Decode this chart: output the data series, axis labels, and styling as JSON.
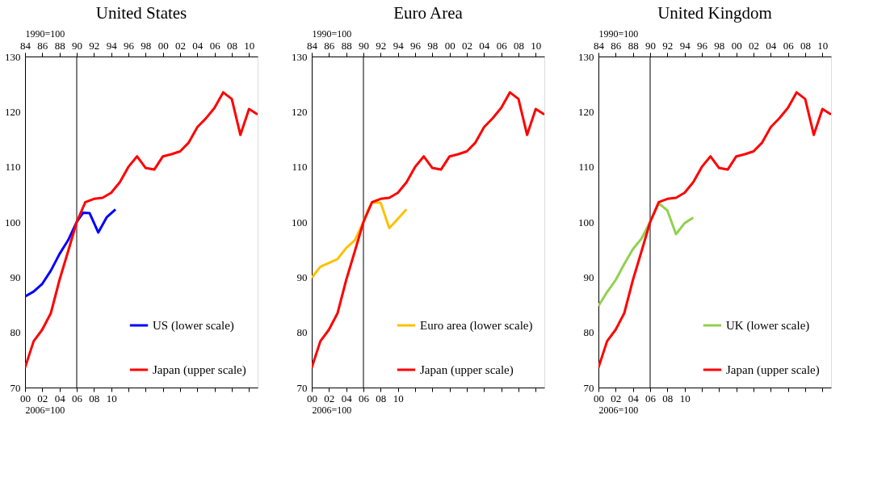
{
  "chart_data": [
    {
      "type": "line",
      "title": "United States",
      "xlabel": "2006=100",
      "x2label": "1990=100",
      "xlim": [
        2000,
        2027
      ],
      "xticks": [
        {
          "value": 2000,
          "label": "00"
        },
        {
          "value": 2002,
          "label": "02"
        },
        {
          "value": 2004,
          "label": "04"
        },
        {
          "value": 2006,
          "label": "06"
        },
        {
          "value": 2008,
          "label": "08"
        },
        {
          "value": 2010,
          "label": "10"
        },
        {
          "value": 2012,
          "label": null
        },
        {
          "value": 2014,
          "label": null
        },
        {
          "value": 2016,
          "label": null
        },
        {
          "value": 2018,
          "label": null
        },
        {
          "value": 2020,
          "label": null
        },
        {
          "value": 2022,
          "label": null
        },
        {
          "value": 2024,
          "label": null
        },
        {
          "value": 2026,
          "label": null
        }
      ],
      "x2lim": [
        1984,
        2011
      ],
      "x2ticks": [
        {
          "value": 1984,
          "label": "84"
        },
        {
          "value": 1986,
          "label": "86"
        },
        {
          "value": 1988,
          "label": "88"
        },
        {
          "value": 1990,
          "label": "90"
        },
        {
          "value": 1992,
          "label": "92"
        },
        {
          "value": 1994,
          "label": "94"
        },
        {
          "value": 1996,
          "label": "96"
        },
        {
          "value": 1998,
          "label": "98"
        },
        {
          "value": 2000,
          "label": "00"
        },
        {
          "value": 2002,
          "label": "02"
        },
        {
          "value": 2004,
          "label": "04"
        },
        {
          "value": 2006,
          "label": "06"
        },
        {
          "value": 2008,
          "label": "08"
        },
        {
          "value": 2010,
          "label": "10"
        }
      ],
      "ylim": [
        70,
        130
      ],
      "yticks": [
        70,
        80,
        90,
        100,
        110,
        120,
        130
      ],
      "grid": false,
      "legend": "bottom right",
      "line_style": "solid",
      "marker": "none",
      "ref_lines": [
        {
          "axis": "x",
          "value": 2006,
          "color": "#000000"
        }
      ],
      "series": [
        {
          "name": "US (lower scale)",
          "color": "#0000ff",
          "x": [
            2000,
            2001,
            2002,
            2003,
            2004,
            2005,
            2006,
            2006.75,
            2007.5,
            2008.5,
            2009.5,
            2010.5
          ],
          "values": [
            86.5,
            87.4,
            88.8,
            91.2,
            94.2,
            96.7,
            100,
            101.7,
            101.6,
            98.1,
            100.9,
            102.3
          ]
        },
        {
          "name": "Japan (upper scale)",
          "color": "#ff0000",
          "axis": "x2",
          "x": [
            1984,
            1985,
            1986,
            1987,
            1988,
            1989,
            1990,
            1991,
            1992,
            1993,
            1994,
            1995,
            1996,
            1997,
            1998,
            1999,
            2000,
            2001,
            2002,
            2003,
            2004,
            2005,
            2006,
            2007,
            2008,
            2009,
            2010,
            2011
          ],
          "values": [
            73.6,
            78.4,
            80.5,
            83.5,
            89.5,
            94.7,
            100,
            103.6,
            104.2,
            104.4,
            105.3,
            107.2,
            110,
            111.9,
            109.8,
            109.5,
            111.9,
            112.3,
            112.8,
            114.4,
            117.2,
            118.8,
            120.7,
            123.5,
            122.3,
            115.8,
            120.5,
            119.5
          ]
        }
      ]
    },
    {
      "type": "line",
      "title": "Euro Area",
      "xlabel": "2006=100",
      "x2label": "1990=100",
      "xlim": [
        2000,
        2027
      ],
      "xticks": [
        {
          "value": 2000,
          "label": "00"
        },
        {
          "value": 2002,
          "label": "02"
        },
        {
          "value": 2004,
          "label": "04"
        },
        {
          "value": 2006,
          "label": "06"
        },
        {
          "value": 2008,
          "label": "08"
        },
        {
          "value": 2010,
          "label": "10"
        },
        {
          "value": 2012,
          "label": null
        },
        {
          "value": 2014,
          "label": null
        },
        {
          "value": 2016,
          "label": null
        },
        {
          "value": 2018,
          "label": null
        },
        {
          "value": 2020,
          "label": null
        },
        {
          "value": 2022,
          "label": null
        },
        {
          "value": 2024,
          "label": null
        },
        {
          "value": 2026,
          "label": null
        }
      ],
      "x2lim": [
        1984,
        2011
      ],
      "x2ticks": [
        {
          "value": 1984,
          "label": "84"
        },
        {
          "value": 1986,
          "label": "86"
        },
        {
          "value": 1988,
          "label": "88"
        },
        {
          "value": 1990,
          "label": "90"
        },
        {
          "value": 1992,
          "label": "92"
        },
        {
          "value": 1994,
          "label": "94"
        },
        {
          "value": 1996,
          "label": "96"
        },
        {
          "value": 1998,
          "label": "98"
        },
        {
          "value": 2000,
          "label": "00"
        },
        {
          "value": 2002,
          "label": "02"
        },
        {
          "value": 2004,
          "label": "04"
        },
        {
          "value": 2006,
          "label": "06"
        },
        {
          "value": 2008,
          "label": "08"
        },
        {
          "value": 2010,
          "label": "10"
        }
      ],
      "ylim": [
        70,
        130
      ],
      "yticks": [
        70,
        80,
        90,
        100,
        110,
        120,
        130
      ],
      "grid": false,
      "legend": "bottom right",
      "line_style": "solid",
      "marker": "none",
      "ref_lines": [
        {
          "axis": "x",
          "value": 2006,
          "color": "#000000"
        }
      ],
      "series": [
        {
          "name": "Euro area (lower scale)",
          "color": "#ffc000",
          "x": [
            2000,
            2001,
            2002,
            2003,
            2004,
            2005,
            2006,
            2006.5,
            2007,
            2008,
            2009,
            2010,
            2011
          ],
          "values": [
            89.9,
            91.9,
            92.6,
            93.3,
            95.3,
            96.7,
            100,
            102.1,
            103.5,
            103.5,
            98.9,
            100.6,
            102.3
          ]
        },
        {
          "name": "Japan (upper scale)",
          "color": "#ff0000",
          "axis": "x2",
          "x": [
            1984,
            1985,
            1986,
            1987,
            1988,
            1989,
            1990,
            1991,
            1992,
            1993,
            1994,
            1995,
            1996,
            1997,
            1998,
            1999,
            2000,
            2001,
            2002,
            2003,
            2004,
            2005,
            2006,
            2007,
            2008,
            2009,
            2010,
            2011
          ],
          "values": [
            73.6,
            78.4,
            80.5,
            83.5,
            89.5,
            94.7,
            100,
            103.6,
            104.2,
            104.4,
            105.3,
            107.2,
            110,
            111.9,
            109.8,
            109.5,
            111.9,
            112.3,
            112.8,
            114.4,
            117.2,
            118.8,
            120.7,
            123.5,
            122.3,
            115.8,
            120.5,
            119.5
          ]
        }
      ]
    },
    {
      "type": "line",
      "title": "United Kingdom",
      "xlabel": "2006=100",
      "x2label": "1990=100",
      "xlim": [
        2000,
        2027
      ],
      "xticks": [
        {
          "value": 2000,
          "label": "00"
        },
        {
          "value": 2002,
          "label": "02"
        },
        {
          "value": 2004,
          "label": "04"
        },
        {
          "value": 2006,
          "label": "06"
        },
        {
          "value": 2008,
          "label": "08"
        },
        {
          "value": 2010,
          "label": "10"
        },
        {
          "value": 2012,
          "label": null
        },
        {
          "value": 2014,
          "label": null
        },
        {
          "value": 2016,
          "label": null
        },
        {
          "value": 2018,
          "label": null
        },
        {
          "value": 2020,
          "label": null
        },
        {
          "value": 2022,
          "label": null
        },
        {
          "value": 2024,
          "label": null
        },
        {
          "value": 2026,
          "label": null
        }
      ],
      "x2lim": [
        1984,
        2011
      ],
      "x2ticks": [
        {
          "value": 1984,
          "label": "84"
        },
        {
          "value": 1986,
          "label": "86"
        },
        {
          "value": 1988,
          "label": "88"
        },
        {
          "value": 1990,
          "label": "90"
        },
        {
          "value": 1992,
          "label": "92"
        },
        {
          "value": 1994,
          "label": "94"
        },
        {
          "value": 1996,
          "label": "96"
        },
        {
          "value": 1998,
          "label": "98"
        },
        {
          "value": 2000,
          "label": "00"
        },
        {
          "value": 2002,
          "label": "02"
        },
        {
          "value": 2004,
          "label": "04"
        },
        {
          "value": 2006,
          "label": "06"
        },
        {
          "value": 2008,
          "label": "08"
        },
        {
          "value": 2010,
          "label": "10"
        }
      ],
      "ylim": [
        70,
        130
      ],
      "yticks": [
        70,
        80,
        90,
        100,
        110,
        120,
        130
      ],
      "grid": false,
      "legend": "bottom right",
      "line_style": "solid",
      "marker": "none",
      "ref_lines": [
        {
          "axis": "x",
          "value": 2006,
          "color": "#000000"
        }
      ],
      "series": [
        {
          "name": "UK (lower scale)",
          "color": "#92d050",
          "x": [
            2000,
            2001,
            2002,
            2003,
            2004,
            2005,
            2006,
            2007,
            2008,
            2009,
            2010,
            2011
          ],
          "values": [
            84.8,
            87.3,
            89.5,
            92.4,
            95.1,
            97.0,
            100,
            103.4,
            102.1,
            97.8,
            99.8,
            100.8
          ]
        },
        {
          "name": "Japan (upper scale)",
          "color": "#ff0000",
          "axis": "x2",
          "x": [
            1984,
            1985,
            1986,
            1987,
            1988,
            1989,
            1990,
            1991,
            1992,
            1993,
            1994,
            1995,
            1996,
            1997,
            1998,
            1999,
            2000,
            2001,
            2002,
            2003,
            2004,
            2005,
            2006,
            2007,
            2008,
            2009,
            2010,
            2011
          ],
          "values": [
            73.6,
            78.4,
            80.5,
            83.5,
            89.5,
            94.7,
            100,
            103.6,
            104.2,
            104.4,
            105.3,
            107.2,
            110,
            111.9,
            109.8,
            109.5,
            111.9,
            112.3,
            112.8,
            114.4,
            117.2,
            118.8,
            120.7,
            123.5,
            122.3,
            115.8,
            120.5,
            119.5
          ]
        }
      ]
    }
  ]
}
